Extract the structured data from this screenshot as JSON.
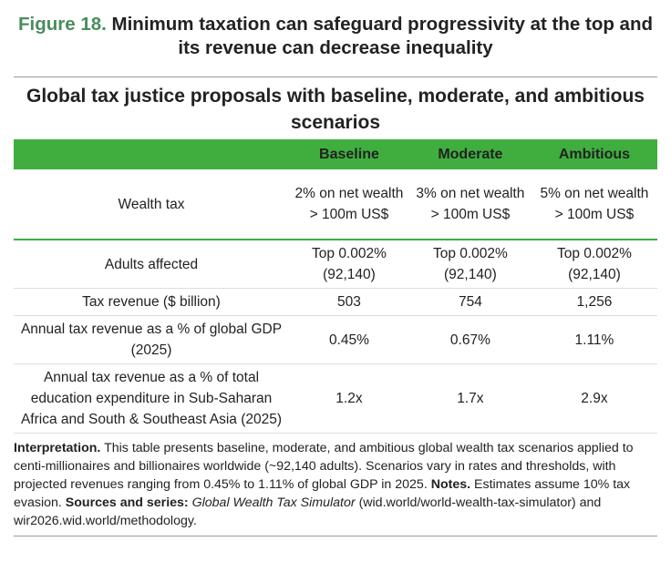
{
  "figure": {
    "label": "Figure 18.",
    "title": "Minimum taxation can safeguard progressivity at the top and its revenue can decrease inequality"
  },
  "table": {
    "title": "Global tax justice proposals with baseline, moderate, and ambitious scenarios",
    "columns": [
      "Baseline",
      "Moderate",
      "Ambitious"
    ],
    "rows": [
      {
        "label": "Wealth tax",
        "values": [
          "2% on net wealth > 100m US$",
          "3% on net wealth > 100m US$",
          "5% on net wealth > 100m US$"
        ]
      },
      {
        "label": "Adults affected",
        "values": [
          "Top 0.002% (92,140)",
          "Top 0.002% (92,140)",
          "Top 0.002% (92,140)"
        ]
      },
      {
        "label": "Tax revenue ($ billion)",
        "values": [
          "503",
          "754",
          "1,256"
        ]
      },
      {
        "label": "Annual tax revenue as a % of global GDP (2025)",
        "values": [
          "0.45%",
          "0.67%",
          "1.11%"
        ]
      },
      {
        "label": "Annual tax revenue as a % of total education expenditure in Sub-Saharan Africa and South & Southeast Asia (2025)",
        "values": [
          "1.2x",
          "1.7x",
          "2.9x"
        ]
      }
    ]
  },
  "note": {
    "interpretation_label": "Interpretation.",
    "interpretation": "This table presents baseline, moderate, and ambitious global wealth tax scenarios applied to centi-millionaires and billionaires worldwide (~92,140 adults). Scenarios vary in rates and thresholds, with projected revenues ranging from 0.45% to 1.11% of global GDP in 2025.",
    "notes_label": "Notes.",
    "notes": "Estimates assume 10% tax evasion.",
    "sources_label": "Sources and series:",
    "sources_title": "Global Wealth Tax Simulator",
    "sources": "(wid.world/world-wealth-tax-simulator) and wir2026.wid.world/methodology."
  }
}
